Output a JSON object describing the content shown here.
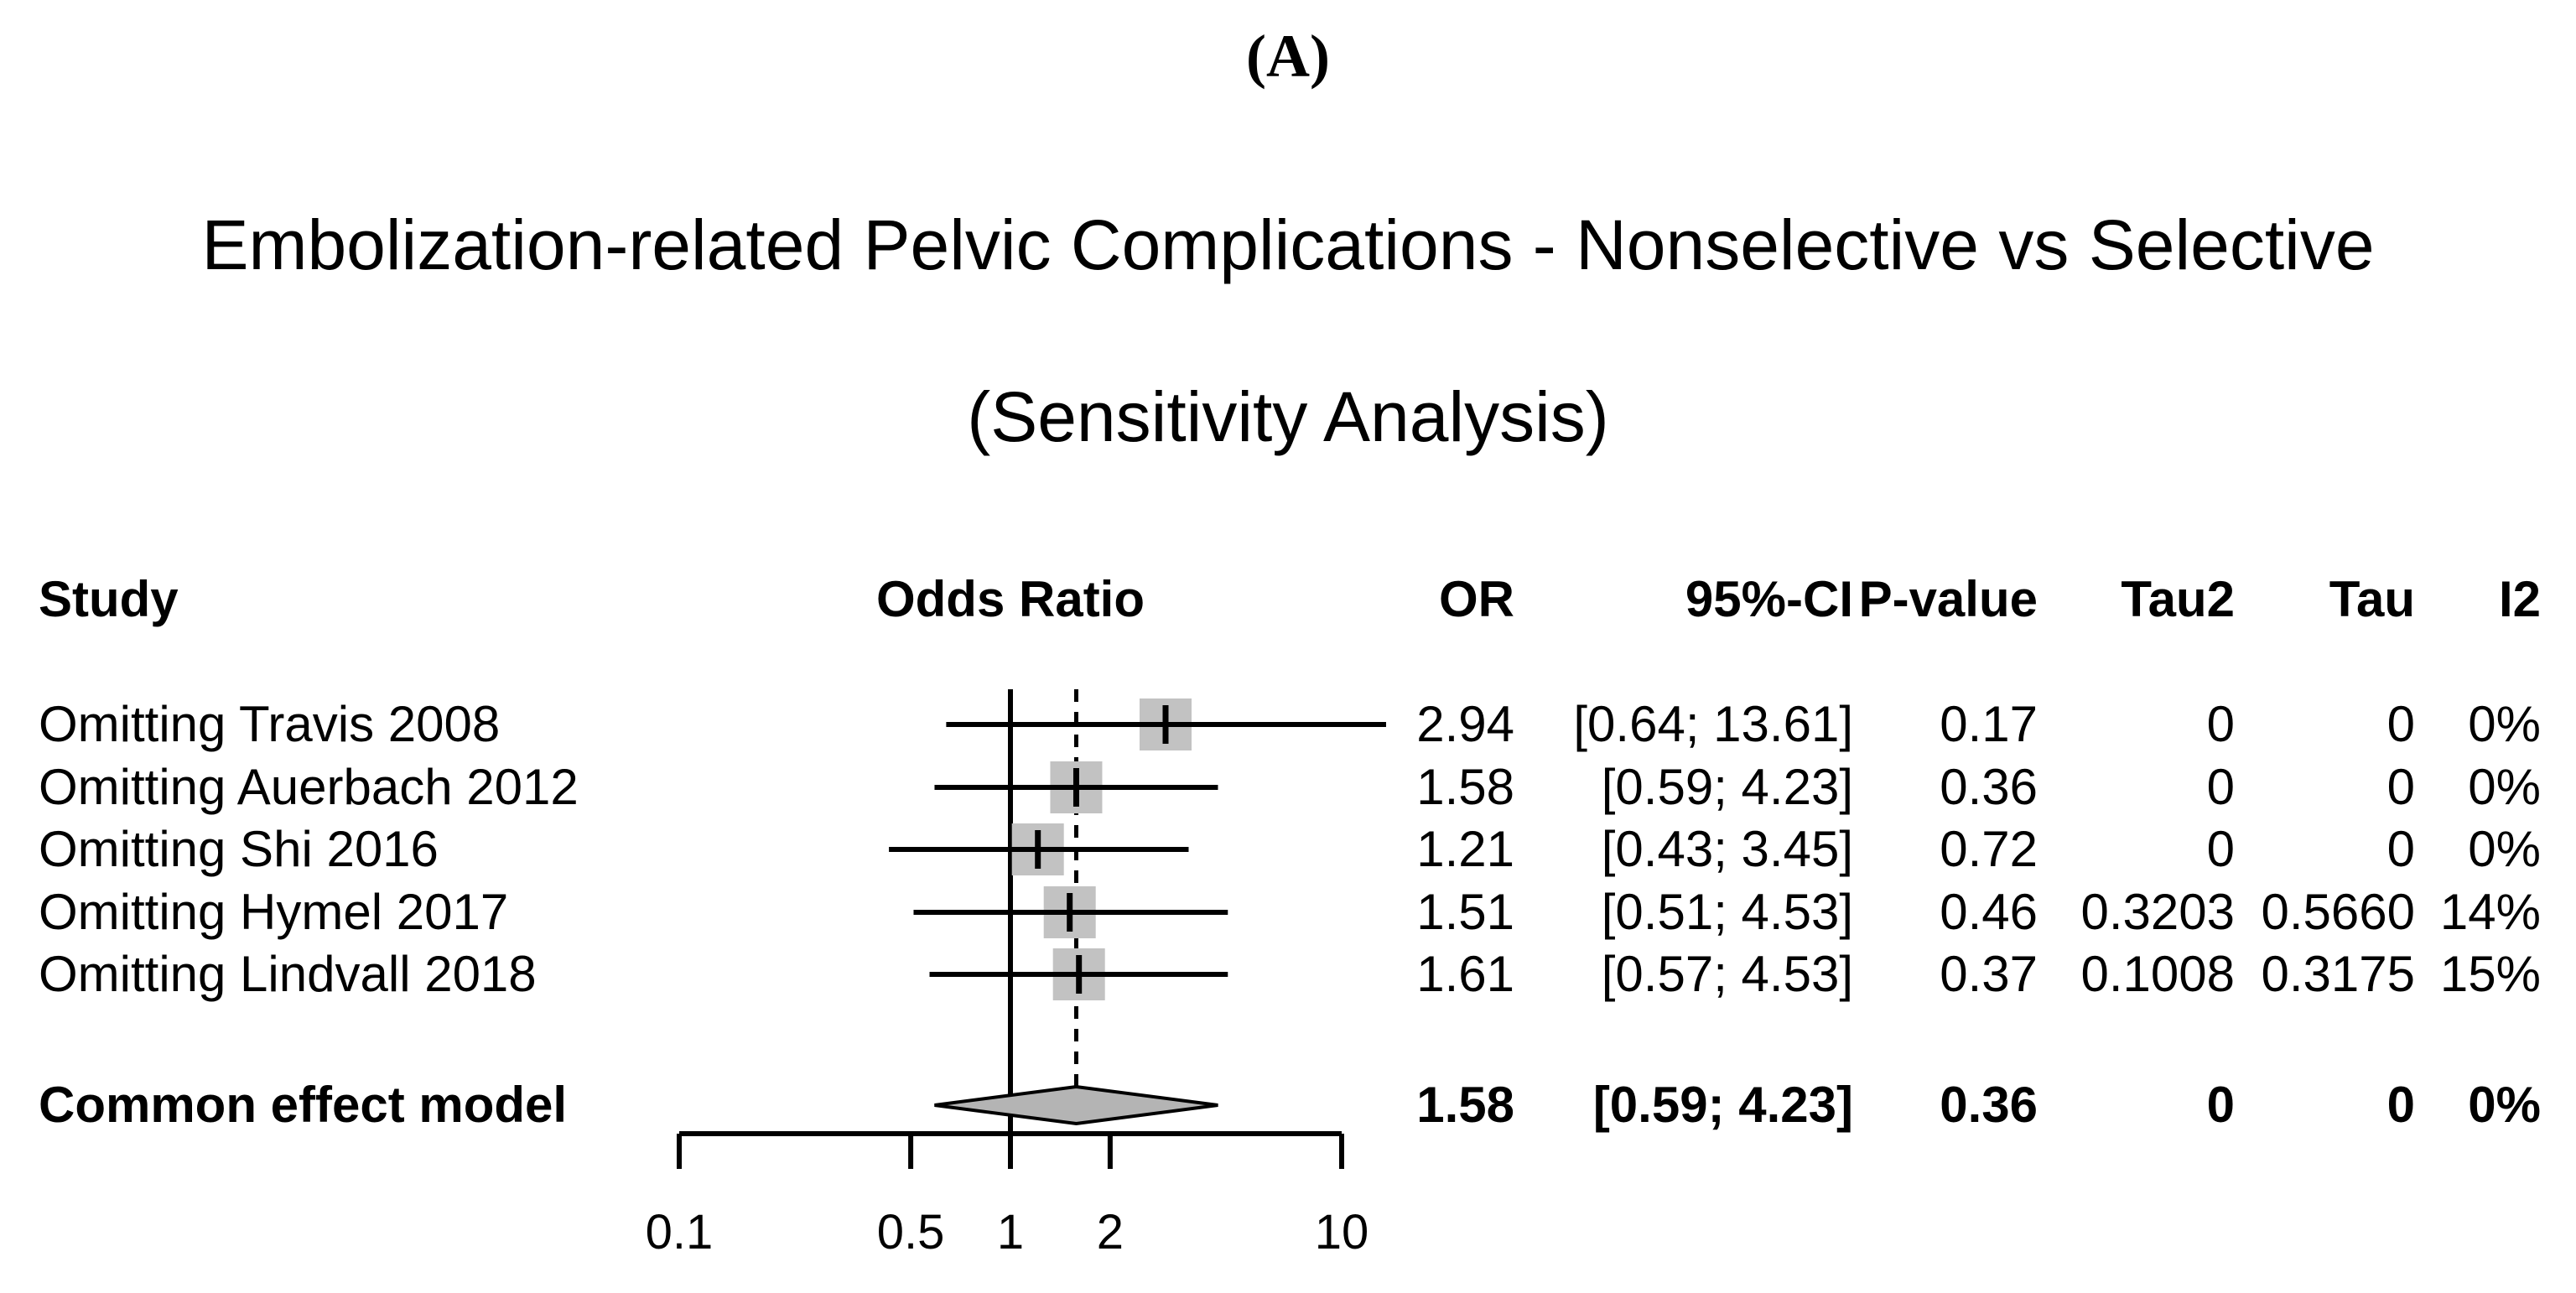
{
  "panel_label": "(A)",
  "title": "Embolization-related Pelvic Complications - Nonselective vs Selective",
  "subtitle": "(Sensitivity Analysis)",
  "table": {
    "headers": {
      "study": "Study",
      "odds_ratio": "Odds Ratio",
      "or": "OR",
      "ci": "95%-CI",
      "pvalue": "P-value",
      "tau2": "Tau2",
      "tau": "Tau",
      "i2": "I2"
    },
    "rows": [
      {
        "label": "Omitting Travis 2008",
        "or": "2.94",
        "ci": "[0.64; 13.61]",
        "pvalue": "0.17",
        "tau2": "0",
        "tau": "0",
        "i2": "0%"
      },
      {
        "label": "Omitting Auerbach 2012",
        "or": "1.58",
        "ci": "[0.59; 4.23]",
        "pvalue": "0.36",
        "tau2": "0",
        "tau": "0",
        "i2": "0%"
      },
      {
        "label": "Omitting Shi 2016",
        "or": "1.21",
        "ci": "[0.43; 3.45]",
        "pvalue": "0.72",
        "tau2": "0",
        "tau": "0",
        "i2": "0%"
      },
      {
        "label": "Omitting Hymel 2017",
        "or": "1.51",
        "ci": "[0.51; 4.53]",
        "pvalue": "0.46",
        "tau2": "0.3203",
        "tau": "0.5660",
        "i2": "14%"
      },
      {
        "label": "Omitting Lindvall 2018",
        "or": "1.61",
        "ci": "[0.57; 4.53]",
        "pvalue": "0.37",
        "tau2": "0.1008",
        "tau": "0.3175",
        "i2": "15%"
      }
    ],
    "summary": {
      "label": "Common effect model",
      "or": "1.58",
      "ci": "[0.59; 4.23]",
      "pvalue": "0.36",
      "tau2": "0",
      "tau": "0",
      "i2": "0%"
    }
  },
  "axis_tick_labels": [
    "0.1",
    "0.5",
    "1",
    "2",
    "10"
  ],
  "chart_data": {
    "type": "forest",
    "title": "Embolization-related Pelvic Complications - Nonselective vs Selective (Sensitivity Analysis)",
    "x_scale": "log10",
    "axis": {
      "min": 0.1,
      "max": 10,
      "ticks": [
        0.1,
        0.5,
        1,
        2,
        10
      ]
    },
    "reference_line": 1,
    "summary_line": 1.58,
    "studies": [
      {
        "label": "Omitting Travis 2008",
        "estimate": 2.94,
        "ci_low": 0.64,
        "ci_high": 13.61,
        "p_value": 0.17,
        "tau2": 0,
        "tau": 0,
        "i2_percent": 0
      },
      {
        "label": "Omitting Auerbach 2012",
        "estimate": 1.58,
        "ci_low": 0.59,
        "ci_high": 4.23,
        "p_value": 0.36,
        "tau2": 0,
        "tau": 0,
        "i2_percent": 0
      },
      {
        "label": "Omitting Shi 2016",
        "estimate": 1.21,
        "ci_low": 0.43,
        "ci_high": 3.45,
        "p_value": 0.72,
        "tau2": 0,
        "tau": 0,
        "i2_percent": 0
      },
      {
        "label": "Omitting Hymel 2017",
        "estimate": 1.51,
        "ci_low": 0.51,
        "ci_high": 4.53,
        "p_value": 0.46,
        "tau2": 0.3203,
        "tau": 0.566,
        "i2_percent": 14
      },
      {
        "label": "Omitting Lindvall 2018",
        "estimate": 1.61,
        "ci_low": 0.57,
        "ci_high": 4.53,
        "p_value": 0.37,
        "tau2": 0.1008,
        "tau": 0.3175,
        "i2_percent": 15
      }
    ],
    "summary": {
      "label": "Common effect model",
      "estimate": 1.58,
      "ci_low": 0.59,
      "ci_high": 4.23,
      "p_value": 0.36,
      "tau2": 0,
      "tau": 0,
      "i2_percent": 0
    },
    "colors": {
      "square": "#c2c2c2",
      "diamond_fill": "#b4b4b4",
      "line": "#000000"
    }
  }
}
